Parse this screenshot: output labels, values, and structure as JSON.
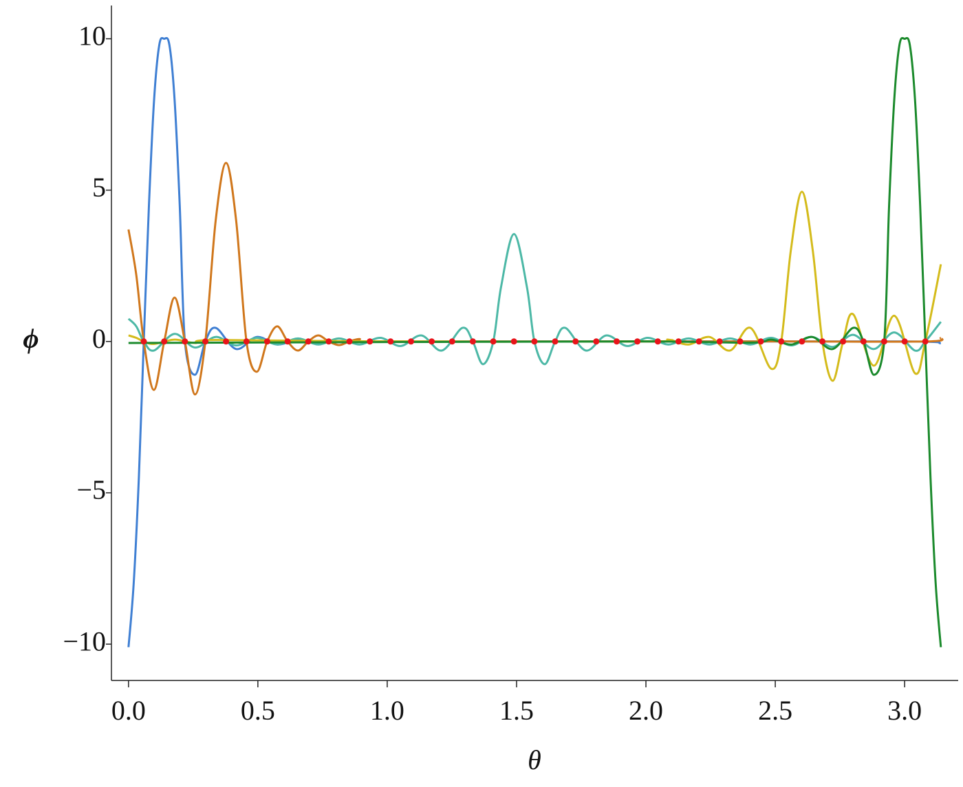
{
  "chart_data": {
    "type": "line",
    "x_label": "θ",
    "y_label": "ϕ",
    "xlim": [
      -0.066,
      3.207
    ],
    "ylim": [
      -11.2,
      11.1
    ],
    "xticks": [
      {
        "value": 0,
        "label": "0.0"
      },
      {
        "value": 0.5,
        "label": "0.5"
      },
      {
        "value": 1,
        "label": "1.0"
      },
      {
        "value": 1.5,
        "label": "1.5"
      },
      {
        "value": 2,
        "label": "2.0"
      },
      {
        "value": 2.5,
        "label": "2.5"
      },
      {
        "value": 3,
        "label": "3.0"
      }
    ],
    "yticks": [
      {
        "value": -10,
        "label": "−10"
      },
      {
        "value": -5,
        "label": "−5"
      },
      0,
      5,
      10
    ],
    "series": [
      {
        "color": "#3f7fd3",
        "style": "line",
        "x": [
          0,
          0.02,
          0.04,
          0.059,
          0.079,
          0.099,
          0.119,
          0.138,
          0.158,
          0.178,
          0.198,
          0.218,
          0.257,
          0.297,
          0.337,
          0.416,
          0.496,
          0.575,
          0.655,
          0.734,
          1.0,
          2.0,
          3.0,
          3.14
        ],
        "values": [
          -10.1,
          -8,
          -4.5,
          0,
          4.5,
          8,
          9.8,
          10,
          9.8,
          8,
          4.5,
          0,
          -1.1,
          0,
          0.45,
          -0.25,
          0.15,
          -0.1,
          0.06,
          -0.04,
          0,
          0,
          0,
          -0.06
        ]
      },
      {
        "color": "#d0771c",
        "style": "line",
        "x": [
          0,
          0.03,
          0.059,
          0.098,
          0.138,
          0.178,
          0.218,
          0.257,
          0.297,
          0.337,
          0.377,
          0.416,
          0.456,
          0.496,
          0.536,
          0.575,
          0.615,
          0.655,
          0.695,
          0.734,
          0.774,
          0.814,
          0.854,
          0.893,
          0.933,
          1.5,
          2.5,
          3.08,
          3.14
        ],
        "values": [
          3.7,
          2.2,
          0,
          -1.6,
          0,
          1.45,
          0,
          -1.75,
          0,
          4,
          5.9,
          4,
          0,
          -1.0,
          0,
          0.5,
          0,
          -0.3,
          0,
          0.2,
          0,
          -0.12,
          0,
          0.08,
          0,
          0,
          0,
          0,
          0.12
        ]
      },
      {
        "color": "#4cb8a6",
        "style": "line",
        "x": [
          0,
          0.03,
          0.059,
          0.098,
          0.178,
          0.257,
          0.337,
          0.416,
          0.496,
          0.575,
          0.655,
          0.734,
          0.814,
          0.893,
          0.973,
          1.052,
          1.132,
          1.211,
          1.291,
          1.331,
          1.37,
          1.41,
          1.44,
          1.49,
          1.54,
          1.569,
          1.609,
          1.649,
          1.688,
          1.768,
          1.847,
          1.927,
          2.006,
          2.086,
          2.165,
          2.245,
          2.325,
          2.404,
          2.484,
          2.563,
          2.642,
          2.722,
          2.801,
          2.881,
          2.96,
          3.04,
          3.08,
          3.14
        ],
        "values": [
          0.75,
          0.5,
          0,
          -0.3,
          0.25,
          -0.2,
          0.15,
          -0.13,
          0.12,
          -0.1,
          0.1,
          -0.1,
          0.1,
          -0.1,
          0.12,
          -0.15,
          0.2,
          -0.3,
          0.45,
          0,
          -0.75,
          0,
          1.8,
          3.55,
          1.8,
          0,
          -0.75,
          0,
          0.45,
          -0.3,
          0.2,
          -0.15,
          0.12,
          -0.1,
          0.1,
          -0.1,
          0.1,
          -0.1,
          0.12,
          -0.13,
          0.15,
          -0.18,
          0.22,
          -0.25,
          0.3,
          -0.3,
          0,
          0.65
        ]
      },
      {
        "color": "#d4bb1b",
        "style": "line",
        "x": [
          0,
          0.03,
          0.059,
          0.098,
          0.178,
          0.257,
          0.337,
          1.0,
          2.006,
          2.086,
          2.165,
          2.245,
          2.325,
          2.404,
          2.484,
          2.523,
          2.56,
          2.603,
          2.645,
          2.682,
          2.722,
          2.762,
          2.801,
          2.881,
          2.96,
          3.04,
          3.08,
          3.14
        ],
        "values": [
          0.2,
          0.12,
          0,
          -0.08,
          0.06,
          -0.05,
          0.05,
          0,
          0,
          0.06,
          -0.1,
          0.15,
          -0.3,
          0.45,
          -0.9,
          0,
          3.0,
          4.95,
          3.0,
          0,
          -1.3,
          0,
          0.9,
          -0.8,
          0.85,
          -1.05,
          0,
          2.55
        ]
      },
      {
        "color": "#1b8a2c",
        "style": "line",
        "x": [
          0,
          1.0,
          2.0,
          2.404,
          2.484,
          2.563,
          2.642,
          2.722,
          2.801,
          2.841,
          2.881,
          2.921,
          2.94,
          2.96,
          2.98,
          3.0,
          3.02,
          3.04,
          3.06,
          3.08,
          3.1,
          3.12,
          3.14
        ],
        "values": [
          -0.05,
          -0.02,
          0,
          -0.04,
          0.06,
          -0.1,
          0.15,
          -0.25,
          0.45,
          0,
          -1.1,
          0,
          4.5,
          8,
          9.8,
          10,
          9.8,
          8,
          4.5,
          0,
          -4.5,
          -8,
          -10.1
        ]
      },
      {
        "color": "#e8141a",
        "style": "points",
        "x": [
          0.059,
          0.138,
          0.218,
          0.297,
          0.377,
          0.456,
          0.536,
          0.615,
          0.695,
          0.774,
          0.854,
          0.933,
          1.013,
          1.092,
          1.172,
          1.251,
          1.331,
          1.41,
          1.49,
          1.569,
          1.649,
          1.728,
          1.808,
          1.887,
          1.967,
          2.046,
          2.126,
          2.205,
          2.285,
          2.364,
          2.444,
          2.523,
          2.603,
          2.682,
          2.762,
          2.841,
          2.921,
          3.0,
          3.08
        ],
        "values": [
          0,
          0,
          0,
          0,
          0,
          0,
          0,
          0,
          0,
          0,
          0,
          0,
          0,
          0,
          0,
          0,
          0,
          0,
          0,
          0,
          0,
          0,
          0,
          0,
          0,
          0,
          0,
          0,
          0,
          0,
          0,
          0,
          0,
          0,
          0,
          0,
          0,
          0,
          0
        ]
      }
    ]
  }
}
